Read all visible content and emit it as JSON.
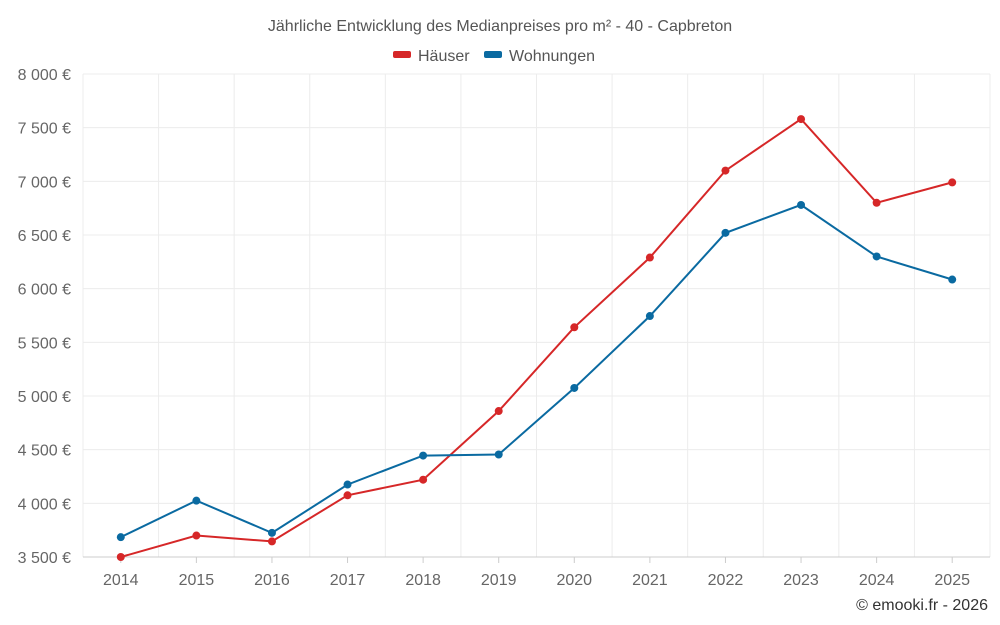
{
  "chart_data": {
    "type": "line",
    "title": "Jährliche Entwicklung des Medianpreises pro m² - 40 - Capbreton",
    "categories": [
      "2014",
      "2015",
      "2016",
      "2017",
      "2018",
      "2019",
      "2020",
      "2021",
      "2022",
      "2023",
      "2024",
      "2025"
    ],
    "series": [
      {
        "name": "Häuser",
        "color": "#d62728",
        "values": [
          3500,
          3700,
          3645,
          4075,
          4220,
          4860,
          5640,
          6290,
          7100,
          7580,
          6800,
          6990
        ]
      },
      {
        "name": "Wohnungen",
        "color": "#0a6aa1",
        "values": [
          3685,
          4025,
          3725,
          4175,
          4445,
          4455,
          5075,
          5745,
          6520,
          6780,
          6300,
          6085
        ]
      }
    ],
    "ylim": [
      3500,
      8000
    ],
    "yticks": [
      3500,
      4000,
      4500,
      5000,
      5500,
      6000,
      6500,
      7000,
      7500,
      8000
    ],
    "ytick_labels": [
      "3 500 €",
      "4 000 €",
      "4 500 €",
      "5 000 €",
      "5 500 €",
      "6 000 €",
      "6 500 €",
      "7 000 €",
      "7 500 €",
      "8 000 €"
    ],
    "xlabel": "",
    "ylabel": "",
    "grid": true,
    "legend_position": "top-center"
  },
  "credit": "© emooki.fr - 2026"
}
